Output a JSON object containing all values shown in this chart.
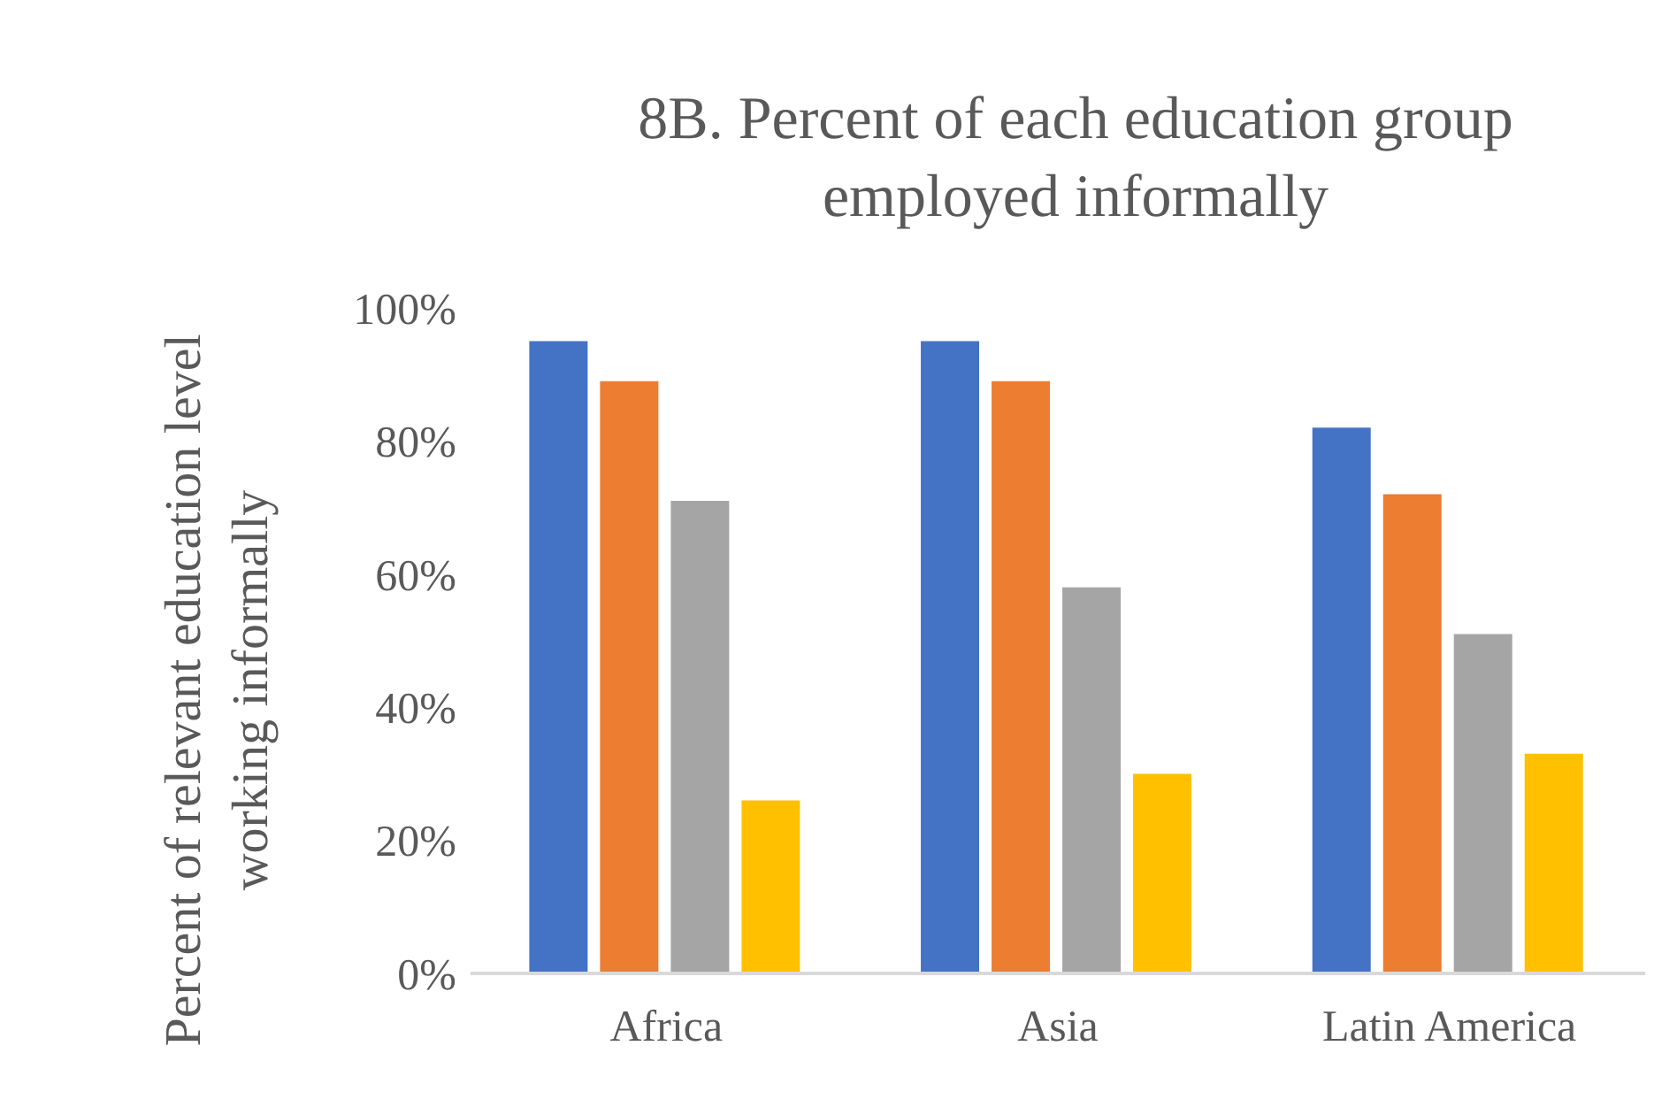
{
  "chart_data": {
    "type": "bar",
    "title": "8B. Percent of each education group employed informally",
    "ylabel": "Percent of relevant education level working informally",
    "categories": [
      "Africa",
      "Asia",
      "Latin America"
    ],
    "series": [
      {
        "color": "#4472c4",
        "values": [
          95,
          95,
          82
        ]
      },
      {
        "color": "#ed7d31",
        "values": [
          89,
          89,
          72
        ]
      },
      {
        "color": "#a5a5a5",
        "values": [
          71,
          58,
          51
        ]
      },
      {
        "color": "#ffc000",
        "values": [
          26,
          30,
          33
        ]
      }
    ],
    "ylim": [
      0,
      100
    ],
    "yticks": [
      {
        "value": 0,
        "label": "0%"
      },
      {
        "value": 20,
        "label": "20%"
      },
      {
        "value": 40,
        "label": "40%"
      },
      {
        "value": 60,
        "label": "60%"
      },
      {
        "value": 80,
        "label": "80%"
      },
      {
        "value": 100,
        "label": "100%"
      }
    ]
  }
}
